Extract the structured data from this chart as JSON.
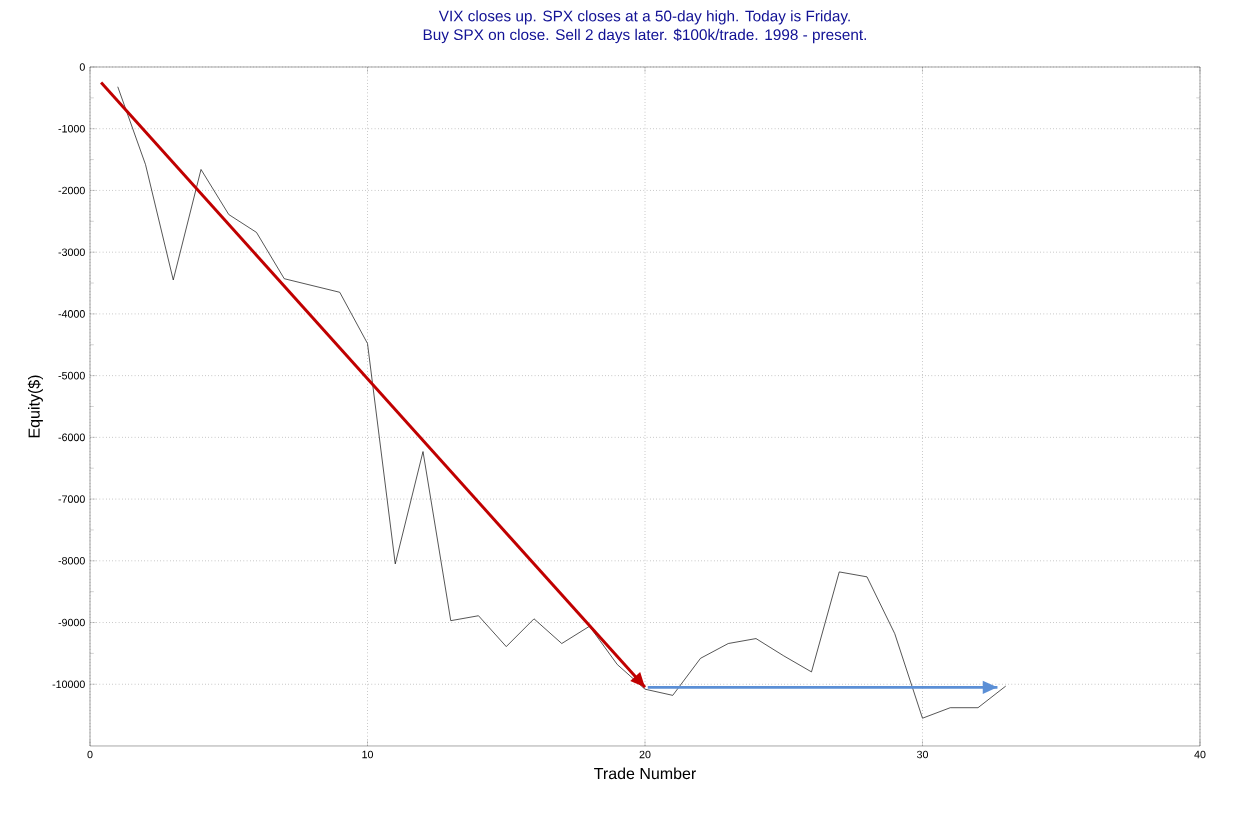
{
  "chart_data": {
    "type": "line",
    "title": "VIX closes up. SPX closes at a 50-day high. Today is Friday.",
    "subtitle": "Buy SPX on close. Sell 2 days later. $100k/trade. 1998 - present.",
    "xlabel": "Trade Number",
    "ylabel": "Equity($)",
    "x": [
      1,
      2,
      3,
      4,
      5,
      6,
      7,
      8,
      9,
      10,
      11,
      12,
      13,
      14,
      15,
      16,
      17,
      18,
      19,
      20,
      21,
      22,
      23,
      24,
      25,
      26,
      27,
      28,
      29,
      30,
      31,
      32,
      33
    ],
    "series": [
      {
        "color": "#000000",
        "values": [
          -320,
          -1580,
          -3450,
          -1660,
          -2390,
          -2680,
          -3430,
          -3540,
          -3650,
          -4480,
          -8050,
          -6230,
          -8970,
          -8890,
          -9390,
          -8940,
          -9340,
          -9060,
          -9680,
          -10080,
          -10180,
          -9580,
          -9340,
          -9260,
          -9540,
          -9800,
          -8180,
          -8260,
          -9180,
          -10550,
          -10380,
          -10380,
          -10030
        ]
      },
      {
        "type": "line",
        "color": "#c00000",
        "x": [
          0.4,
          20
        ],
        "values": [
          -250,
          -10050
        ]
      },
      {
        "type": "line",
        "color": "#5b8fd6",
        "x": [
          20.1,
          32.7
        ],
        "values": [
          -10050,
          -10050
        ]
      }
    ],
    "xlim": [
      0,
      40
    ],
    "ylim": [
      -11000,
      0
    ],
    "xticks": [
      0,
      10,
      20,
      30,
      40
    ],
    "yticks": [
      0,
      -1000,
      -2000,
      -3000,
      -4000,
      -5000,
      -6000,
      -7000,
      -8000,
      -9000,
      -10000
    ],
    "grid": true,
    "line_style": "solid",
    "marker": "none"
  }
}
